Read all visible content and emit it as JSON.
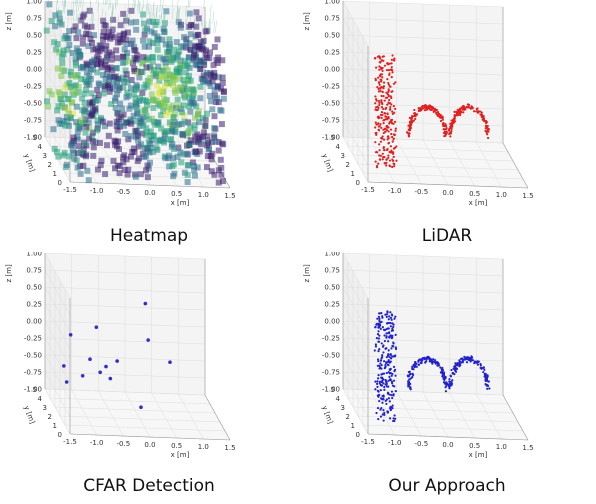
{
  "chart_data": [
    {
      "type": "scatter",
      "title": "Heatmap",
      "render": "heatmap-volume",
      "colormap": [
        "#3a1f6e",
        "#2c6f8e",
        "#24a07b",
        "#7cc64e",
        "#d9e33a"
      ],
      "xlabel": "x [m]",
      "ylabel": "y [m]",
      "zlabel": "z [m]",
      "x_ticks": [
        "-1.5",
        "-1.0",
        "-0.5",
        "0.0",
        "0.5",
        "1.0",
        "1.5"
      ],
      "y_ticks": [
        "0",
        "1",
        "2",
        "3",
        "4",
        "5"
      ],
      "z_ticks": [
        "1.00",
        "0.75",
        "0.50",
        "0.25",
        "0.00",
        "-0.25",
        "-0.50",
        "-0.75",
        "-1.00"
      ],
      "xlim": [
        -1.5,
        1.5
      ],
      "ylim": [
        0,
        5
      ],
      "zlim": [
        -1,
        1
      ]
    },
    {
      "type": "scatter",
      "title": "LiDAR",
      "render": "dense-points",
      "color": "#e02020",
      "xlabel": "x [m]",
      "ylabel": "y [m]",
      "zlabel": "z [m]",
      "x_ticks": [
        "-1.5",
        "-1.0",
        "-0.5",
        "0.0",
        "0.5",
        "1.0",
        "1.5"
      ],
      "y_ticks": [
        "0",
        "1",
        "2",
        "3",
        "4",
        "5"
      ],
      "z_ticks": [
        "1.00",
        "0.75",
        "0.50",
        "0.25",
        "0.00",
        "-0.25",
        "-0.50",
        "-0.75",
        "-1.00"
      ],
      "xlim": [
        -1.5,
        1.5
      ],
      "ylim": [
        0,
        5
      ],
      "zlim": [
        -1,
        1
      ],
      "shapes": [
        {
          "kind": "person",
          "x": -1.0,
          "y": 1.8,
          "z_range": [
            -1.0,
            0.6
          ]
        },
        {
          "kind": "wheel",
          "x": -0.2,
          "y": 2.0,
          "r": 0.35
        },
        {
          "kind": "wheel",
          "x": 0.6,
          "y": 2.2,
          "r": 0.35
        }
      ]
    },
    {
      "type": "scatter",
      "title": "CFAR Detection",
      "render": "sparse-points",
      "color": "#3030c8",
      "xlabel": "x [m]",
      "ylabel": "y [m]",
      "zlabel": "z [m]",
      "x_ticks": [
        "-1.5",
        "-1.0",
        "-0.5",
        "0.0",
        "0.5",
        "1.0",
        "1.5"
      ],
      "y_ticks": [
        "0",
        "1",
        "2",
        "3",
        "4",
        "5"
      ],
      "z_ticks": [
        "1.00",
        "0.75",
        "0.50",
        "0.25",
        "0.00",
        "-0.25",
        "-0.50",
        "-0.75",
        "-1.00"
      ],
      "xlim": [
        -1.5,
        1.5
      ],
      "ylim": [
        0,
        5
      ],
      "zlim": [
        -1,
        1
      ],
      "points": [
        {
          "x": -1.3,
          "y": 2.0,
          "z": 0.2
        },
        {
          "x": -1.4,
          "y": 2.3,
          "z": -0.3
        },
        {
          "x": -0.8,
          "y": 2.2,
          "z": 0.3
        },
        {
          "x": -0.9,
          "y": 2.4,
          "z": -0.2
        },
        {
          "x": -0.7,
          "y": 2.5,
          "z": -0.4
        },
        {
          "x": -0.6,
          "y": 2.4,
          "z": -0.3
        },
        {
          "x": -0.5,
          "y": 2.6,
          "z": -0.5
        },
        {
          "x": -0.4,
          "y": 2.3,
          "z": -0.2
        },
        {
          "x": 0.1,
          "y": 2.0,
          "z": 0.7
        },
        {
          "x": 0.2,
          "y": 2.5,
          "z": 0.1
        },
        {
          "x": 0.6,
          "y": 2.4,
          "z": -0.2
        },
        {
          "x": 0.0,
          "y": 1.8,
          "z": -0.8
        },
        {
          "x": -1.3,
          "y": 2.8,
          "z": -0.6
        },
        {
          "x": -1.0,
          "y": 2.8,
          "z": -0.5
        }
      ]
    },
    {
      "type": "scatter",
      "title": "Our Approach",
      "render": "dense-points",
      "color": "#2222cc",
      "xlabel": "x [m]",
      "ylabel": "y [m]",
      "zlabel": "z [m]",
      "x_ticks": [
        "-1.5",
        "-1.0",
        "-0.5",
        "0.0",
        "0.5",
        "1.0",
        "1.5"
      ],
      "y_ticks": [
        "0",
        "1",
        "2",
        "3",
        "4",
        "5"
      ],
      "z_ticks": [
        "1.00",
        "0.75",
        "0.50",
        "0.25",
        "0.00",
        "-0.25",
        "-0.50",
        "-0.75",
        "-1.00"
      ],
      "xlim": [
        -1.5,
        1.5
      ],
      "ylim": [
        0,
        5
      ],
      "zlim": [
        -1,
        1
      ],
      "shapes": [
        {
          "kind": "person",
          "x": -1.0,
          "y": 1.8,
          "z_range": [
            -1.0,
            0.6
          ]
        },
        {
          "kind": "wheel",
          "x": -0.2,
          "y": 2.0,
          "r": 0.35
        },
        {
          "kind": "wheel",
          "x": 0.6,
          "y": 2.2,
          "r": 0.35
        }
      ]
    }
  ],
  "captions": [
    "Heatmap",
    "LiDAR",
    "CFAR Detection",
    "Our Approach"
  ]
}
